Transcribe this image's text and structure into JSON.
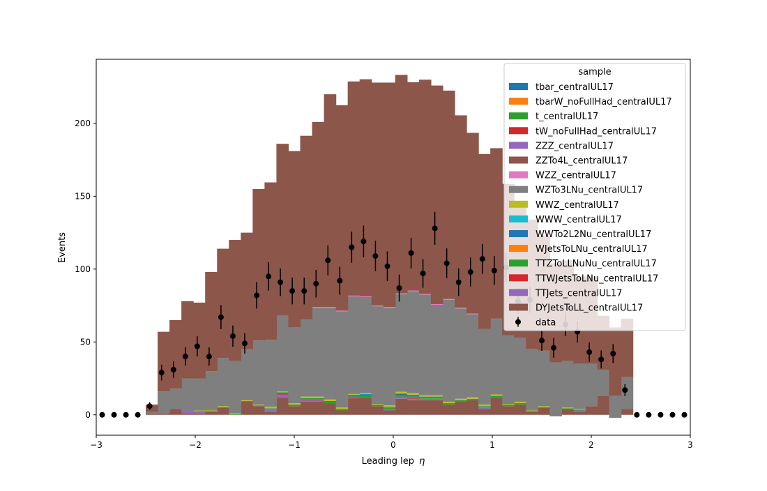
{
  "chart_data": {
    "type": "bar",
    "subtype": "stacked-histogram-with-data-points",
    "xlabel": "Leading lep",
    "xlabel_symbol": "η",
    "ylabel": "Events",
    "xlim": [
      -3,
      3
    ],
    "ylim": [
      -14,
      244
    ],
    "x_ticks": [
      -3,
      -2,
      -1,
      0,
      1,
      2,
      3
    ],
    "x_tick_labels": [
      "−3",
      "−2",
      "−1",
      "0",
      "1",
      "2",
      "3"
    ],
    "y_ticks": [
      0,
      50,
      100,
      150,
      200
    ],
    "y_tick_labels": [
      "0",
      "50",
      "100",
      "150",
      "200"
    ],
    "grid": false,
    "bins": [
      -2.5,
      -2.38,
      -2.26,
      -2.14,
      -2.02,
      -1.9,
      -1.78,
      -1.66,
      -1.54,
      -1.42,
      -1.3,
      -1.18,
      -1.06,
      -0.94,
      -0.82,
      -0.7,
      -0.58,
      -0.46,
      -0.34,
      -0.22,
      -0.1,
      0.02,
      0.14,
      0.26,
      0.38,
      0.5,
      0.62,
      0.74,
      0.86,
      0.98,
      1.1,
      1.22,
      1.34,
      1.46,
      1.58,
      1.7,
      1.82,
      1.94,
      2.06,
      2.18,
      2.3,
      2.42
    ],
    "legend": {
      "title": "sample",
      "position": "upper right",
      "entries": [
        {
          "label": "tbar_centralUL17",
          "color": "#1f77b4",
          "kind": "patch"
        },
        {
          "label": "tbarW_noFullHad_centralUL17",
          "color": "#ff7f0e",
          "kind": "patch"
        },
        {
          "label": "t_centralUL17",
          "color": "#2ca02c",
          "kind": "patch"
        },
        {
          "label": "tW_noFullHad_centralUL17",
          "color": "#d62728",
          "kind": "patch"
        },
        {
          "label": "ZZZ_centralUL17",
          "color": "#9467bd",
          "kind": "patch"
        },
        {
          "label": "ZZTo4L_centralUL17",
          "color": "#8c564b",
          "kind": "patch"
        },
        {
          "label": "WZZ_centralUL17",
          "color": "#e377c2",
          "kind": "patch"
        },
        {
          "label": "WZTo3LNu_centralUL17",
          "color": "#7f7f7f",
          "kind": "patch"
        },
        {
          "label": "WWZ_centralUL17",
          "color": "#bcbd22",
          "kind": "patch"
        },
        {
          "label": "WWW_centralUL17",
          "color": "#17becf",
          "kind": "patch"
        },
        {
          "label": "WWTo2L2Nu_centralUL17",
          "color": "#1f77b4",
          "kind": "patch"
        },
        {
          "label": "WJetsToLNu_centralUL17",
          "color": "#ff7f0e",
          "kind": "patch"
        },
        {
          "label": "TTZToLLNuNu_centralUL17",
          "color": "#2ca02c",
          "kind": "patch"
        },
        {
          "label": "TTWJetsToLNu_centralUL17",
          "color": "#d62728",
          "kind": "patch"
        },
        {
          "label": "TTJets_centralUL17",
          "color": "#9467bd",
          "kind": "patch"
        },
        {
          "label": "DYJetsToLL_centralUL17",
          "color": "#8c564b",
          "kind": "patch"
        },
        {
          "label": "data",
          "color": "#000000",
          "kind": "errorbar"
        }
      ]
    },
    "stack_layers": [
      {
        "name": "ZZTo4L_centralUL17",
        "color": "#8c564b",
        "values": [
          1,
          1,
          4,
          1,
          1,
          2,
          5,
          0,
          9,
          6,
          2,
          12,
          6,
          9,
          9,
          8,
          3,
          11,
          12,
          6,
          3,
          11,
          10,
          10,
          10,
          7,
          9,
          10,
          4,
          12,
          6,
          7,
          2,
          5,
          -1,
          4,
          2,
          6,
          13,
          -2,
          4,
          0
        ]
      },
      {
        "name": "TTJets_centralUL17",
        "color": "#9467bd",
        "values": [
          0,
          0,
          0,
          2,
          1,
          0,
          0,
          0,
          0,
          0,
          2,
          2,
          0,
          1,
          1,
          0,
          0,
          0,
          0,
          0,
          1,
          1,
          1,
          1,
          1,
          0,
          0,
          0,
          1,
          0,
          0,
          0,
          0,
          0,
          0,
          0,
          1,
          0,
          0,
          0,
          0,
          0
        ]
      },
      {
        "name": "TTWJetsToLNu_centralUL17",
        "color": "#d62728",
        "values": [
          0,
          0,
          0,
          0,
          0,
          0,
          0,
          0,
          0,
          0,
          0,
          0.5,
          0,
          0.5,
          0.5,
          0,
          0,
          0.5,
          0,
          0,
          0,
          0.5,
          0.5,
          0,
          0,
          0,
          0,
          0,
          0,
          0,
          0,
          0,
          0,
          0,
          0,
          0,
          0,
          0,
          0,
          0,
          0,
          0
        ]
      },
      {
        "name": "TTZToLLNuNu_centralUL17",
        "color": "#2ca02c",
        "values": [
          0,
          0,
          0,
          0,
          0.5,
          0.5,
          0.5,
          0.5,
          0.5,
          0.5,
          0.5,
          1,
          1,
          1,
          1,
          1,
          1,
          1,
          1,
          1,
          1,
          1,
          1,
          1,
          1,
          1,
          1,
          1,
          1,
          1,
          1,
          1,
          0.5,
          0.5,
          0,
          0.5,
          0.5,
          0,
          0,
          0,
          0,
          0
        ]
      },
      {
        "name": "WWTo2L2Nu_centralUL17",
        "color": "#1f77b4",
        "values": [
          0,
          0,
          0,
          0,
          0,
          0,
          0,
          0,
          0,
          0,
          0,
          0,
          0,
          0,
          0,
          0.5,
          0,
          1,
          1,
          0,
          0.5,
          1,
          1,
          0.5,
          0.5,
          0,
          0,
          0,
          0,
          0,
          0,
          0,
          0,
          0,
          0,
          0,
          0,
          0,
          0,
          0,
          0,
          0
        ]
      },
      {
        "name": "WWW_centralUL17",
        "color": "#17becf",
        "values": [
          0,
          0,
          0,
          0,
          0,
          0,
          0,
          0,
          0,
          0,
          0,
          0,
          0,
          0,
          0,
          0,
          0,
          0.3,
          0.3,
          0,
          0,
          0.3,
          0.3,
          0,
          0,
          0,
          0,
          0,
          0,
          0,
          0,
          0,
          0,
          0,
          0,
          0,
          0,
          0,
          0,
          0,
          0,
          0
        ]
      },
      {
        "name": "WWZ_centralUL17",
        "color": "#bcbd22",
        "values": [
          0,
          0,
          0,
          0,
          0.5,
          0.5,
          0.5,
          0.5,
          0.5,
          0.5,
          1,
          0.5,
          1,
          1,
          1,
          1,
          1,
          0.5,
          0.5,
          0.5,
          1,
          1,
          1,
          1,
          1,
          1,
          1,
          1,
          1,
          1,
          0.5,
          1,
          0.5,
          0.5,
          0,
          0.5,
          0.5,
          0,
          0,
          0,
          0,
          0
        ]
      },
      {
        "name": "WZTo3LNu_centralUL17",
        "color": "#7f7f7f",
        "values": [
          1,
          15,
          14,
          22,
          22,
          27,
          33,
          36,
          35,
          44,
          46,
          52,
          52,
          53,
          61,
          63,
          66,
          67,
          66,
          67,
          67,
          67,
          70,
          69,
          62,
          70,
          62,
          57,
          52,
          52,
          47,
          44,
          42,
          38,
          37,
          32,
          31,
          29,
          18,
          15,
          22,
          0
        ]
      },
      {
        "name": "WZZ_centralUL17",
        "color": "#e377c2",
        "values": [
          0,
          0,
          0,
          0,
          0,
          0,
          0,
          0,
          0,
          0,
          0,
          0,
          0,
          0,
          0.5,
          0.5,
          0.5,
          0.5,
          0.5,
          0.5,
          0.5,
          0.5,
          0.5,
          0.5,
          0.5,
          0.5,
          0.5,
          0.5,
          0,
          0,
          0,
          0,
          0,
          0,
          0,
          0,
          0,
          0,
          0,
          0,
          0,
          0
        ]
      },
      {
        "name": "DYJetsToLL_centralUL17",
        "color": "#8c564b",
        "values": [
          5,
          41,
          47,
          53,
          52,
          68,
          75,
          83,
          80,
          104,
          108,
          118,
          121,
          126,
          127,
          146,
          141,
          147,
          149,
          153,
          154,
          150,
          143,
          147,
          150,
          143,
          132,
          124,
          120,
          117,
          104,
          92,
          89,
          79,
          68,
          69,
          60,
          60,
          37,
          47,
          40,
          7
        ]
      }
    ],
    "data_points": {
      "name": "data",
      "x": [
        -2.94,
        -2.82,
        -2.7,
        -2.58,
        -2.46,
        -2.34,
        -2.22,
        -2.1,
        -1.98,
        -1.86,
        -1.74,
        -1.62,
        -1.5,
        -1.38,
        -1.26,
        -1.14,
        -1.02,
        -0.9,
        -0.78,
        -0.66,
        -0.54,
        -0.42,
        -0.3,
        -0.18,
        -0.06,
        0.06,
        0.18,
        0.3,
        0.42,
        0.54,
        0.66,
        0.78,
        0.9,
        1.02,
        1.14,
        1.26,
        1.38,
        1.5,
        1.62,
        1.74,
        1.86,
        1.98,
        2.1,
        2.22,
        2.34,
        2.46,
        2.58,
        2.7,
        2.82,
        2.94
      ],
      "y": [
        0,
        0,
        0,
        0,
        6,
        29,
        31,
        40,
        47,
        40,
        67,
        54,
        49,
        82,
        95,
        91,
        85,
        85,
        90,
        106,
        92,
        115,
        119,
        109,
        102,
        87,
        111,
        97,
        128,
        104,
        91,
        98,
        107,
        99,
        101,
        78,
        79,
        51,
        46,
        62,
        57,
        43,
        38,
        42,
        17,
        0,
        0,
        0,
        0,
        0
      ],
      "yerr": [
        0,
        0,
        0,
        0,
        2.5,
        5.4,
        5.6,
        6.3,
        6.9,
        6.3,
        8.2,
        7.3,
        7.0,
        9.1,
        9.7,
        9.5,
        9.2,
        9.2,
        9.5,
        10.3,
        9.6,
        10.7,
        10.9,
        10.4,
        10.1,
        9.3,
        10.5,
        9.8,
        11.3,
        10.2,
        9.5,
        9.9,
        10.3,
        9.9,
        10.0,
        8.8,
        8.9,
        7.1,
        6.8,
        7.9,
        7.5,
        6.6,
        6.2,
        6.5,
        4.1,
        0,
        0,
        0,
        0,
        0
      ]
    }
  }
}
